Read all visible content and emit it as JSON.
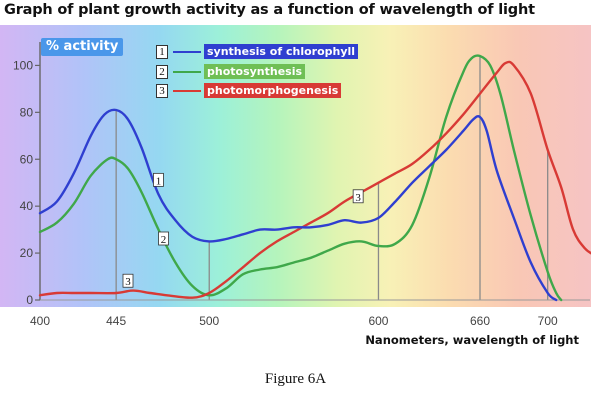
{
  "title": "Graph of plant growth activity as a function of wavelength of light",
  "caption": "Figure 6A",
  "chart_data": {
    "type": "line",
    "title": "Graph of plant growth activity as a function of wavelength of light",
    "ylabel": "% activity",
    "xlabel": "Nanometers, wavelength of light",
    "xlim": [
      400,
      725
    ],
    "ylim": [
      0,
      107
    ],
    "x_ticks": [
      {
        "value": 400,
        "label": "400"
      },
      {
        "value": 445,
        "label": "445"
      },
      {
        "value": 500,
        "label": "500"
      },
      {
        "value": 600,
        "label": "600"
      },
      {
        "value": 660,
        "label": "660"
      },
      {
        "value": 700,
        "label": "700"
      }
    ],
    "y_ticks": [
      {
        "value": 0,
        "label": "0"
      },
      {
        "value": 20,
        "label": "20"
      },
      {
        "value": 40,
        "label": "40"
      },
      {
        "value": 60,
        "label": "60"
      },
      {
        "value": 80,
        "label": "80"
      },
      {
        "value": 100,
        "label": "100"
      }
    ],
    "vertical_guides": [
      445,
      500,
      600,
      660,
      700
    ],
    "grid": false,
    "legend_position": "top-left",
    "series": [
      {
        "id": "1",
        "name": "synthesis of chlorophyll",
        "color": "#2f3fd0",
        "label_bg": "#2f3fd0",
        "points": [
          [
            400,
            37
          ],
          [
            410,
            42
          ],
          [
            420,
            54
          ],
          [
            430,
            70
          ],
          [
            438,
            79
          ],
          [
            445,
            81
          ],
          [
            452,
            77
          ],
          [
            460,
            65
          ],
          [
            470,
            45
          ],
          [
            480,
            34
          ],
          [
            490,
            27
          ],
          [
            500,
            25
          ],
          [
            510,
            26
          ],
          [
            520,
            28
          ],
          [
            530,
            30
          ],
          [
            540,
            30
          ],
          [
            550,
            31
          ],
          [
            560,
            31
          ],
          [
            570,
            32
          ],
          [
            580,
            34
          ],
          [
            590,
            33
          ],
          [
            600,
            35
          ],
          [
            610,
            42
          ],
          [
            620,
            50
          ],
          [
            630,
            57
          ],
          [
            640,
            64
          ],
          [
            650,
            72
          ],
          [
            656,
            77
          ],
          [
            660,
            78
          ],
          [
            664,
            72
          ],
          [
            670,
            55
          ],
          [
            680,
            35
          ],
          [
            690,
            16
          ],
          [
            700,
            3
          ],
          [
            705,
            0
          ]
        ],
        "annotations": [
          {
            "x": 470,
            "y": 51,
            "label": "1"
          }
        ]
      },
      {
        "id": "2",
        "name": "photosynthesis",
        "color": "#3fa84a",
        "label_bg": "#6fbf55",
        "points": [
          [
            400,
            29
          ],
          [
            410,
            33
          ],
          [
            420,
            41
          ],
          [
            430,
            53
          ],
          [
            440,
            60
          ],
          [
            445,
            60
          ],
          [
            452,
            56
          ],
          [
            460,
            46
          ],
          [
            470,
            30
          ],
          [
            480,
            16
          ],
          [
            490,
            6
          ],
          [
            500,
            2
          ],
          [
            510,
            5
          ],
          [
            520,
            11
          ],
          [
            530,
            13
          ],
          [
            540,
            14
          ],
          [
            550,
            16
          ],
          [
            560,
            18
          ],
          [
            570,
            21
          ],
          [
            580,
            24
          ],
          [
            590,
            25
          ],
          [
            600,
            23
          ],
          [
            610,
            24
          ],
          [
            620,
            32
          ],
          [
            630,
            52
          ],
          [
            640,
            78
          ],
          [
            650,
            97
          ],
          [
            655,
            103
          ],
          [
            660,
            104
          ],
          [
            666,
            100
          ],
          [
            672,
            88
          ],
          [
            680,
            64
          ],
          [
            690,
            36
          ],
          [
            700,
            12
          ],
          [
            705,
            3
          ],
          [
            708,
            0
          ]
        ],
        "annotations": [
          {
            "x": 473,
            "y": 26,
            "label": "2"
          }
        ]
      },
      {
        "id": "3",
        "name": "photomorphogenesis",
        "color": "#d83a35",
        "label_bg": "#d83a35",
        "points": [
          [
            400,
            2
          ],
          [
            410,
            3
          ],
          [
            420,
            3
          ],
          [
            430,
            3
          ],
          [
            445,
            3
          ],
          [
            455,
            4
          ],
          [
            465,
            3
          ],
          [
            475,
            2
          ],
          [
            490,
            1
          ],
          [
            500,
            3
          ],
          [
            510,
            8
          ],
          [
            520,
            14
          ],
          [
            530,
            20
          ],
          [
            540,
            25
          ],
          [
            550,
            29
          ],
          [
            560,
            33
          ],
          [
            570,
            37
          ],
          [
            580,
            42
          ],
          [
            590,
            46
          ],
          [
            600,
            50
          ],
          [
            610,
            54
          ],
          [
            620,
            58
          ],
          [
            630,
            64
          ],
          [
            640,
            71
          ],
          [
            650,
            79
          ],
          [
            660,
            88
          ],
          [
            670,
            97
          ],
          [
            675,
            101
          ],
          [
            680,
            100
          ],
          [
            690,
            88
          ],
          [
            700,
            64
          ],
          [
            708,
            48
          ],
          [
            715,
            30
          ],
          [
            722,
            22
          ],
          [
            728,
            19
          ]
        ],
        "annotations": [
          {
            "x": 452,
            "y": 8,
            "label": "3"
          },
          {
            "x": 588,
            "y": 44,
            "label": "3"
          }
        ]
      }
    ]
  }
}
